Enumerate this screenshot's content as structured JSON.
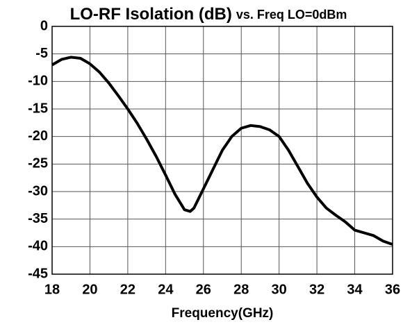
{
  "chart_data": {
    "type": "line",
    "title": "LO-RF Isolation (dB)",
    "subtitle": "vs. Freq  LO=0dBm",
    "x_label": "Frequency(GHz)",
    "x": [
      18,
      18.5,
      19,
      19.5,
      20,
      20.5,
      21,
      21.5,
      22,
      22.5,
      23,
      23.5,
      24,
      24.5,
      25,
      25.3,
      25.5,
      26,
      26.5,
      27,
      27.5,
      28,
      28.5,
      29,
      29.5,
      30,
      30.5,
      31,
      31.5,
      32,
      32.5,
      33,
      33.5,
      34,
      34.5,
      35,
      35.5,
      36
    ],
    "series": [
      {
        "color": "#000000",
        "values": [
          -7,
          -6,
          -5.6,
          -5.8,
          -6.8,
          -8.3,
          -10.3,
          -12.6,
          -15,
          -17.6,
          -20.5,
          -23.6,
          -27,
          -30.5,
          -33.3,
          -33.6,
          -33,
          -29.5,
          -26,
          -22.5,
          -20,
          -18.5,
          -18,
          -18.2,
          -18.8,
          -20,
          -22.5,
          -25.5,
          -28.5,
          -31,
          -33,
          -34.3,
          -35.5,
          -37,
          -37.5,
          -38,
          -39,
          -39.6
        ]
      }
    ],
    "xlim": [
      18,
      36
    ],
    "xticks": [
      18,
      20,
      22,
      24,
      26,
      28,
      30,
      32,
      34,
      36
    ],
    "ylim": [
      -45,
      0
    ],
    "yticks": [
      0,
      -5,
      -10,
      -15,
      -20,
      -25,
      -30,
      -35,
      -40,
      -45
    ],
    "grid": true
  }
}
